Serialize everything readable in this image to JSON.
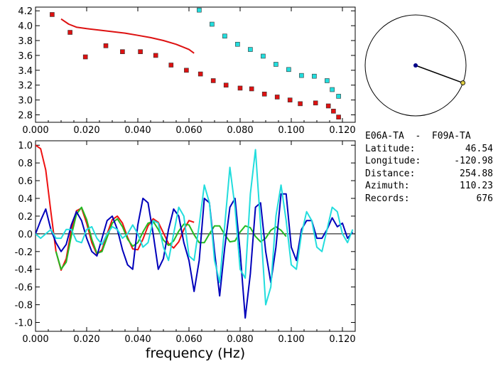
{
  "chart_data": [
    {
      "type": "scatter",
      "title": "",
      "xlabel": "",
      "ylabel": "",
      "xlim": [
        0.0,
        0.125
      ],
      "ylim": [
        2.7,
        4.25
      ],
      "xticks": [
        "0.000",
        "0.020",
        "0.040",
        "0.060",
        "0.080",
        "0.100",
        "0.120"
      ],
      "yticks": [
        "2.8",
        "3.0",
        "3.2",
        "3.4",
        "3.6",
        "3.8",
        "4.0",
        "4.2"
      ],
      "series": [
        {
          "color": "#dd1111",
          "mode": "markers",
          "x": [
            0.0065,
            0.0135,
            0.0195,
            0.0275,
            0.034,
            0.041,
            0.047,
            0.053,
            0.059,
            0.0645,
            0.0695,
            0.0745,
            0.08,
            0.0845,
            0.0895,
            0.0945,
            0.0995,
            0.1035,
            0.1095,
            0.1145,
            0.1165,
            0.1185
          ],
          "y": [
            4.15,
            3.91,
            3.58,
            3.73,
            3.65,
            3.65,
            3.6,
            3.47,
            3.4,
            3.35,
            3.26,
            3.2,
            3.16,
            3.15,
            3.08,
            3.04,
            3.0,
            2.95,
            2.96,
            2.92,
            2.85,
            2.77
          ]
        },
        {
          "color": "#dd1111",
          "mode": "line",
          "x": [
            0.01,
            0.013,
            0.016,
            0.02,
            0.025,
            0.03,
            0.035,
            0.04,
            0.045,
            0.05,
            0.055,
            0.06,
            0.062
          ],
          "y": [
            4.09,
            4.02,
            3.98,
            3.96,
            3.94,
            3.92,
            3.9,
            3.87,
            3.84,
            3.8,
            3.75,
            3.68,
            3.63
          ]
        },
        {
          "color": "#22dddd",
          "mode": "markers",
          "x": [
            0.064,
            0.069,
            0.074,
            0.079,
            0.084,
            0.089,
            0.094,
            0.099,
            0.104,
            0.109,
            0.114,
            0.116,
            0.1185
          ],
          "y": [
            4.21,
            4.02,
            3.86,
            3.75,
            3.68,
            3.59,
            3.48,
            3.41,
            3.33,
            3.32,
            3.26,
            3.14,
            3.05
          ]
        }
      ]
    },
    {
      "type": "line",
      "title": "",
      "xlabel": "frequency (Hz)",
      "ylabel": "",
      "xlim": [
        0.0,
        0.125
      ],
      "ylim": [
        -1.1,
        1.05
      ],
      "xticks": [
        "0.000",
        "0.020",
        "0.040",
        "0.060",
        "0.080",
        "0.100",
        "0.120"
      ],
      "yticks": [
        "1.0",
        "0.8",
        "0.6",
        "0.4",
        "0.2",
        "0.0",
        "-0.2",
        "-0.4",
        "-0.6",
        "-0.8",
        "-1.0"
      ],
      "zero_line": true,
      "series": [
        {
          "color": "#ee1111",
          "x": [
            0.0,
            0.002,
            0.004,
            0.006,
            0.008,
            0.01,
            0.012,
            0.014,
            0.016,
            0.018,
            0.02,
            0.022,
            0.024,
            0.026,
            0.028,
            0.03,
            0.032,
            0.034,
            0.036,
            0.038,
            0.04,
            0.042,
            0.044,
            0.046,
            0.048,
            0.05,
            0.052,
            0.054,
            0.056,
            0.058,
            0.06,
            0.062
          ],
          "y": [
            1.0,
            0.96,
            0.72,
            0.25,
            -0.2,
            -0.41,
            -0.28,
            0.05,
            0.26,
            0.29,
            0.12,
            -0.1,
            -0.23,
            -0.18,
            0.0,
            0.16,
            0.2,
            0.12,
            -0.04,
            -0.17,
            -0.18,
            -0.06,
            0.09,
            0.17,
            0.13,
            0.01,
            -0.11,
            -0.16,
            -0.09,
            0.05,
            0.15,
            0.13
          ]
        },
        {
          "color": "#22bb22",
          "x": [
            0.008,
            0.01,
            0.012,
            0.014,
            0.016,
            0.018,
            0.02,
            0.022,
            0.024,
            0.026,
            0.028,
            0.03,
            0.032,
            0.034,
            0.036,
            0.038,
            0.04,
            0.042,
            0.044,
            0.046,
            0.048,
            0.05,
            0.052,
            0.054,
            0.056,
            0.058,
            0.06,
            0.062,
            0.064,
            0.066,
            0.068,
            0.07,
            0.072,
            0.074,
            0.076,
            0.078,
            0.08,
            0.082,
            0.084,
            0.086,
            0.088,
            0.09,
            0.092,
            0.094,
            0.096,
            0.098
          ],
          "y": [
            -0.2,
            -0.4,
            -0.32,
            -0.02,
            0.22,
            0.3,
            0.16,
            -0.06,
            -0.22,
            -0.2,
            -0.04,
            0.12,
            0.17,
            0.08,
            -0.06,
            -0.14,
            -0.1,
            0.02,
            0.12,
            0.14,
            0.05,
            -0.07,
            -0.13,
            -0.08,
            0.03,
            0.11,
            0.1,
            -0.01,
            -0.1,
            -0.1,
            0.0,
            0.09,
            0.09,
            -0.01,
            -0.09,
            -0.08,
            0.02,
            0.09,
            0.07,
            -0.03,
            -0.09,
            -0.05,
            0.04,
            0.08,
            0.04,
            -0.03
          ]
        },
        {
          "color": "#0000bb",
          "x": [
            0.0,
            0.002,
            0.004,
            0.006,
            0.008,
            0.01,
            0.012,
            0.014,
            0.016,
            0.018,
            0.02,
            0.022,
            0.024,
            0.026,
            0.028,
            0.03,
            0.032,
            0.034,
            0.036,
            0.038,
            0.04,
            0.042,
            0.044,
            0.046,
            0.048,
            0.05,
            0.052,
            0.054,
            0.056,
            0.058,
            0.06,
            0.062,
            0.064,
            0.066,
            0.068,
            0.07,
            0.072,
            0.074,
            0.076,
            0.078,
            0.08,
            0.082,
            0.084,
            0.086,
            0.088,
            0.09,
            0.092,
            0.094,
            0.096,
            0.098,
            0.1,
            0.102,
            0.104,
            0.106,
            0.108,
            0.11,
            0.112,
            0.114,
            0.116,
            0.118,
            0.12,
            0.122,
            0.124
          ],
          "y": [
            0.0,
            0.15,
            0.28,
            0.05,
            -0.1,
            -0.2,
            -0.12,
            0.1,
            0.25,
            0.15,
            -0.05,
            -0.2,
            -0.25,
            -0.05,
            0.15,
            0.2,
            0.05,
            -0.18,
            -0.35,
            -0.4,
            0.1,
            0.4,
            0.35,
            0.0,
            -0.4,
            -0.28,
            0.05,
            0.28,
            0.2,
            -0.1,
            -0.3,
            -0.65,
            -0.3,
            0.4,
            0.35,
            -0.2,
            -0.7,
            -0.15,
            0.3,
            0.4,
            -0.2,
            -0.95,
            -0.45,
            0.3,
            0.35,
            -0.2,
            -0.55,
            -0.15,
            0.45,
            0.45,
            -0.15,
            -0.3,
            0.05,
            0.15,
            0.15,
            -0.05,
            -0.05,
            0.05,
            0.18,
            0.08,
            0.12,
            -0.05,
            0.02
          ]
        },
        {
          "color": "#22dddd",
          "x": [
            0.0,
            0.002,
            0.004,
            0.006,
            0.008,
            0.01,
            0.012,
            0.014,
            0.016,
            0.018,
            0.02,
            0.022,
            0.024,
            0.026,
            0.028,
            0.03,
            0.032,
            0.034,
            0.036,
            0.038,
            0.04,
            0.042,
            0.044,
            0.046,
            0.048,
            0.05,
            0.052,
            0.054,
            0.056,
            0.058,
            0.06,
            0.062,
            0.064,
            0.066,
            0.068,
            0.07,
            0.072,
            0.074,
            0.076,
            0.078,
            0.08,
            0.082,
            0.084,
            0.086,
            0.088,
            0.09,
            0.092,
            0.094,
            0.096,
            0.098,
            0.1,
            0.102,
            0.104,
            0.106,
            0.108,
            0.11,
            0.112,
            0.114,
            0.116,
            0.118,
            0.12,
            0.122,
            0.124
          ],
          "y": [
            0.0,
            -0.05,
            0.0,
            0.05,
            -0.05,
            -0.05,
            0.05,
            0.05,
            -0.08,
            -0.1,
            0.05,
            0.08,
            -0.05,
            -0.12,
            0.0,
            0.08,
            0.05,
            -0.05,
            0.0,
            0.1,
            0.0,
            -0.15,
            -0.1,
            0.15,
            0.12,
            -0.15,
            -0.3,
            0.0,
            0.3,
            0.2,
            -0.25,
            -0.3,
            0.1,
            0.55,
            0.35,
            -0.3,
            -0.55,
            0.1,
            0.75,
            0.3,
            -0.4,
            -0.5,
            0.45,
            0.95,
            0.1,
            -0.8,
            -0.6,
            0.2,
            0.55,
            0.15,
            -0.35,
            -0.4,
            0.0,
            0.25,
            0.15,
            -0.15,
            -0.2,
            0.05,
            0.3,
            0.25,
            0.0,
            -0.1,
            0.05
          ]
        }
      ]
    }
  ],
  "map": {
    "center_color": "#000088",
    "station_color": "#ddcc44",
    "azimuth_deg": 110.23
  },
  "info": {
    "title": "E06A-TA  -  F09A-TA",
    "rows": [
      {
        "label": "Latitude:",
        "value": "46.54"
      },
      {
        "label": "Longitude:",
        "value": "-120.98"
      },
      {
        "label": "Distance:",
        "value": "254.88"
      },
      {
        "label": "Azimuth:",
        "value": "110.23"
      },
      {
        "label": "Records:",
        "value": "676"
      }
    ]
  }
}
